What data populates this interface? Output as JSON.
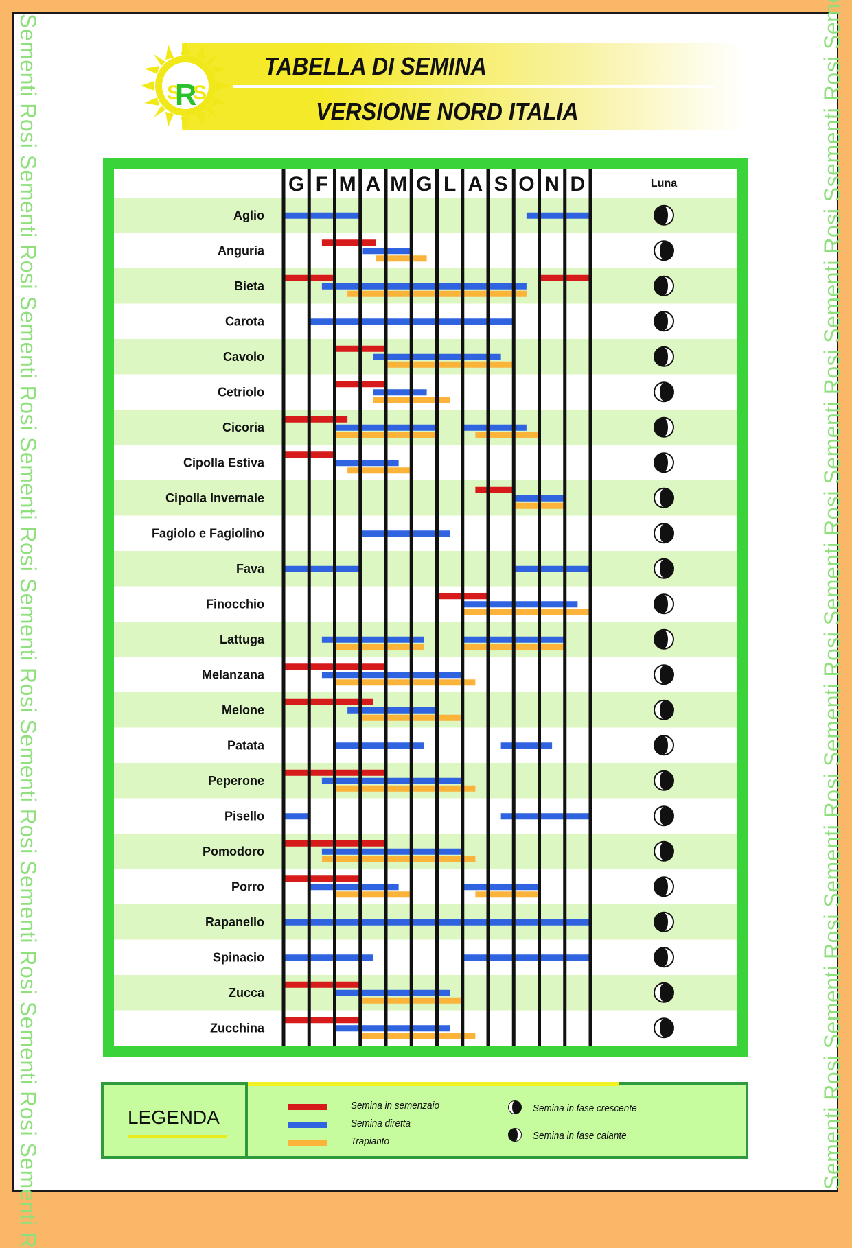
{
  "header": {
    "title_line1": "TABELLA DI SEMINA",
    "title_line2": "VERSIONE NORD ITALIA",
    "logo_letters": "SRS"
  },
  "side_text": "Sementi Rosi Sementi Rosi Sementi Rosi Sementi Rosi Sementi Rosi Sementi Rosi Sementi Rosi Sementi Rosi Sementi R",
  "side_text_right": "Sementi Rosi Sementi Rosi Sementi Rosi Sementi Rosi Sementi Rosi Sementi Rosi Sementi Rosi Ssementi Rosi Sementi R",
  "colors": {
    "semenzaio": "#d71a1a",
    "diretta": "#2f63e0",
    "trapianto": "#fbb33a",
    "frame_green": "#3ad43a",
    "row_stripe": "#ddf7c2",
    "page_border": "#fbb768"
  },
  "chart_data": {
    "type": "gantt",
    "months": [
      "G",
      "F",
      "M",
      "A",
      "M",
      "G",
      "L",
      "A",
      "S",
      "O",
      "N",
      "D"
    ],
    "moon_column_label": "Luna",
    "month_units": "month index, 0 = start of January, 12 = end of December",
    "rows": [
      {
        "name": "Aglio",
        "moon": "calante",
        "semenzaio": [],
        "diretta": [
          [
            0,
            3
          ],
          [
            9.5,
            12
          ]
        ],
        "trapianto": []
      },
      {
        "name": "Anguria",
        "moon": "crescente",
        "semenzaio": [
          [
            1.5,
            3.6
          ]
        ],
        "diretta": [
          [
            3.1,
            5
          ]
        ],
        "trapianto": [
          [
            3.6,
            5.6
          ]
        ]
      },
      {
        "name": "Bieta",
        "moon": "calante",
        "semenzaio": [
          [
            0,
            2
          ],
          [
            10,
            12
          ]
        ],
        "diretta": [
          [
            1.5,
            9.5
          ]
        ],
        "trapianto": [
          [
            2.5,
            9.5
          ]
        ]
      },
      {
        "name": "Carota",
        "moon": "calante",
        "semenzaio": [],
        "diretta": [
          [
            1,
            9
          ]
        ],
        "trapianto": []
      },
      {
        "name": "Cavolo",
        "moon": "calante",
        "semenzaio": [
          [
            2,
            4
          ]
        ],
        "diretta": [
          [
            3.5,
            8.5
          ]
        ],
        "trapianto": [
          [
            4,
            9
          ]
        ]
      },
      {
        "name": "Cetriolo",
        "moon": "crescente",
        "semenzaio": [
          [
            2,
            4
          ]
        ],
        "diretta": [
          [
            3.5,
            5.6
          ]
        ],
        "trapianto": [
          [
            3.5,
            6.5
          ]
        ]
      },
      {
        "name": "Cicoria",
        "moon": "calante",
        "semenzaio": [
          [
            0,
            2.5
          ]
        ],
        "diretta": [
          [
            2,
            6
          ],
          [
            7,
            9.5
          ]
        ],
        "trapianto": [
          [
            2,
            6
          ],
          [
            7.5,
            10
          ]
        ]
      },
      {
        "name": "Cipolla Estiva",
        "moon": "calante",
        "semenzaio": [
          [
            0,
            2
          ]
        ],
        "diretta": [
          [
            2,
            4.5
          ]
        ],
        "trapianto": [
          [
            2.5,
            5
          ]
        ]
      },
      {
        "name": "Cipolla Invernale",
        "moon": "crescente",
        "semenzaio": [
          [
            7.5,
            9
          ]
        ],
        "diretta": [
          [
            9,
            11
          ]
        ],
        "trapianto": [
          [
            9,
            11
          ]
        ]
      },
      {
        "name": "Fagiolo e Fagiolino",
        "moon": "crescente",
        "semenzaio": [],
        "diretta": [
          [
            3,
            6.5
          ]
        ],
        "trapianto": []
      },
      {
        "name": "Fava",
        "moon": "crescente",
        "semenzaio": [],
        "diretta": [
          [
            0,
            3
          ],
          [
            9,
            12
          ]
        ],
        "trapianto": []
      },
      {
        "name": "Finocchio",
        "moon": "calante",
        "semenzaio": [
          [
            6,
            8
          ]
        ],
        "diretta": [
          [
            7,
            11.5
          ]
        ],
        "trapianto": [
          [
            7,
            12
          ]
        ]
      },
      {
        "name": "Lattuga",
        "moon": "calante",
        "semenzaio": [],
        "diretta": [
          [
            1.5,
            5.5
          ],
          [
            7,
            11
          ]
        ],
        "trapianto": [
          [
            2,
            5.5
          ],
          [
            7,
            11
          ]
        ]
      },
      {
        "name": "Melanzana",
        "moon": "crescente",
        "semenzaio": [
          [
            0,
            4
          ]
        ],
        "diretta": [
          [
            1.5,
            7
          ]
        ],
        "trapianto": [
          [
            2,
            7.5
          ]
        ]
      },
      {
        "name": "Melone",
        "moon": "crescente",
        "semenzaio": [
          [
            0,
            3.5
          ]
        ],
        "diretta": [
          [
            2.5,
            6
          ]
        ],
        "trapianto": [
          [
            3,
            7
          ]
        ]
      },
      {
        "name": "Patata",
        "moon": "calante",
        "semenzaio": [],
        "diretta": [
          [
            2,
            5.5
          ],
          [
            8.5,
            10.5
          ]
        ],
        "trapianto": []
      },
      {
        "name": "Peperone",
        "moon": "crescente",
        "semenzaio": [
          [
            0,
            4
          ]
        ],
        "diretta": [
          [
            1.5,
            7
          ]
        ],
        "trapianto": [
          [
            2,
            7.5
          ]
        ]
      },
      {
        "name": "Pisello",
        "moon": "crescente",
        "semenzaio": [],
        "diretta": [
          [
            0,
            1
          ],
          [
            8.5,
            12
          ]
        ],
        "trapianto": []
      },
      {
        "name": "Pomodoro",
        "moon": "crescente",
        "semenzaio": [
          [
            0,
            4
          ]
        ],
        "diretta": [
          [
            1.5,
            7
          ]
        ],
        "trapianto": [
          [
            1.5,
            7.5
          ]
        ]
      },
      {
        "name": "Porro",
        "moon": "calante",
        "semenzaio": [
          [
            0,
            3
          ]
        ],
        "diretta": [
          [
            1,
            4.5
          ],
          [
            7,
            10
          ]
        ],
        "trapianto": [
          [
            2,
            5
          ],
          [
            7.5,
            10
          ]
        ]
      },
      {
        "name": "Rapanello",
        "moon": "calante",
        "semenzaio": [],
        "diretta": [
          [
            0,
            12
          ]
        ],
        "trapianto": []
      },
      {
        "name": "Spinacio",
        "moon": "calante",
        "semenzaio": [],
        "diretta": [
          [
            0,
            3.5
          ],
          [
            7,
            12
          ]
        ],
        "trapianto": []
      },
      {
        "name": "Zucca",
        "moon": "crescente",
        "semenzaio": [
          [
            0,
            3
          ]
        ],
        "diretta": [
          [
            2,
            6.5
          ]
        ],
        "trapianto": [
          [
            3,
            7
          ]
        ]
      },
      {
        "name": "Zucchina",
        "moon": "crescente",
        "semenzaio": [
          [
            0,
            3
          ]
        ],
        "diretta": [
          [
            2,
            6.5
          ]
        ],
        "trapianto": [
          [
            3,
            7.5
          ]
        ]
      }
    ]
  },
  "legend": {
    "title": "LEGENDA",
    "semenzaio": "Semina in semenzaio",
    "diretta": "Semina diretta",
    "trapianto": "Trapianto",
    "crescente": "Semina in fase crescente",
    "calante": "Semina in fase calante"
  }
}
